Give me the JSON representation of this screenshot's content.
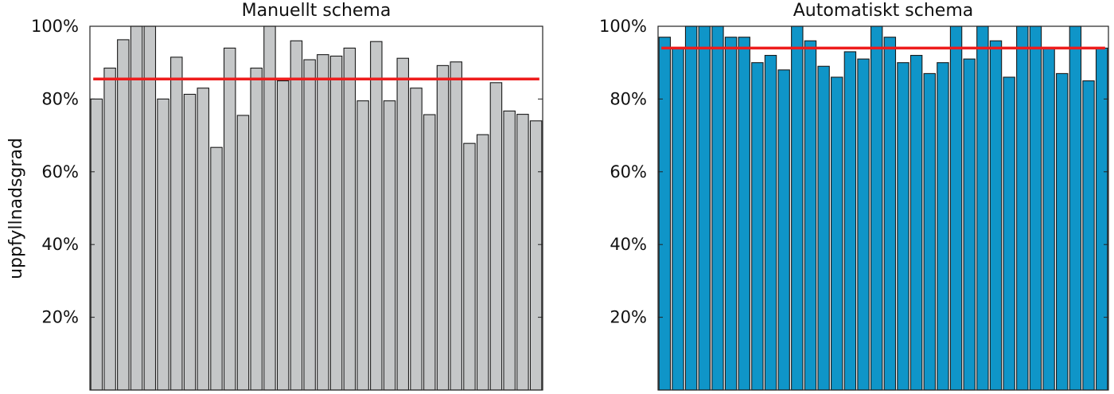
{
  "y_axis_label": "uppfyllnadsgrad",
  "chart_data": [
    {
      "type": "bar",
      "title": "Manuellt schema",
      "ylabel": "uppfyllnadsgrad",
      "ylim": [
        0,
        100
      ],
      "yticks": [
        20,
        40,
        60,
        80,
        100
      ],
      "ytick_labels": [
        "20%",
        "40%",
        "60%",
        "80%",
        "100%"
      ],
      "bar_color": "#c5c7c8",
      "bar_edge_color": "#1a1a1a",
      "mean_line": 85.5,
      "mean_line_color": "#ee1c1c",
      "values": [
        80,
        88.5,
        96.3,
        100,
        100,
        80,
        91.5,
        81.3,
        83,
        66.7,
        94,
        75.5,
        88.5,
        100,
        85,
        96,
        90.8,
        92.2,
        91.8,
        94,
        79.5,
        95.8,
        79.5,
        91.2,
        83,
        75.7,
        89.2,
        90.2,
        67.8,
        70.2,
        84.5,
        76.7,
        75.8,
        74
      ]
    },
    {
      "type": "bar",
      "title": "Automatiskt schema",
      "ylabel": "",
      "ylim": [
        0,
        100
      ],
      "yticks": [
        20,
        40,
        60,
        80,
        100
      ],
      "ytick_labels": [
        "20%",
        "40%",
        "60%",
        "80%",
        "100%"
      ],
      "bar_color": "#0f95c8",
      "bar_edge_color": "#1a1a1a",
      "mean_line": 94,
      "mean_line_color": "#ee1c1c",
      "values": [
        97,
        94,
        100,
        100,
        100,
        97,
        97,
        90,
        92,
        88,
        100,
        96,
        89,
        86,
        93,
        91,
        100,
        97,
        90,
        92,
        87,
        90,
        100,
        91,
        100,
        96,
        86,
        100,
        100,
        94,
        87,
        100,
        85,
        94
      ]
    }
  ]
}
